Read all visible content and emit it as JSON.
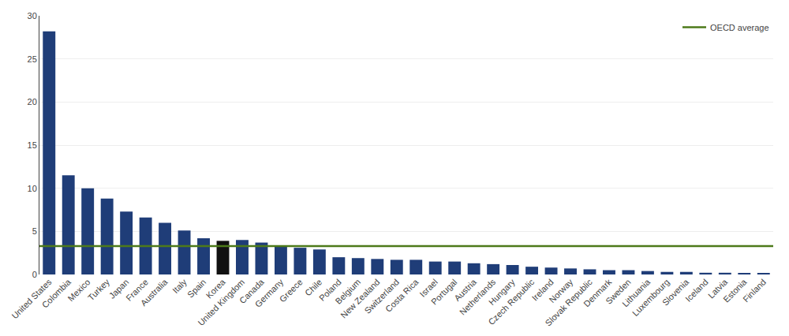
{
  "chart_data": {
    "type": "bar",
    "categories": [
      "United States",
      "Colombia",
      "Mexico",
      "Turkey",
      "Japan",
      "France",
      "Australia",
      "Italy",
      "Spain",
      "Korea",
      "United Kingdom",
      "Canada",
      "Germany",
      "Greece",
      "Chile",
      "Poland",
      "Belgium",
      "New Zealand",
      "Switzerland",
      "Costa Rica",
      "Israel",
      "Portugal",
      "Austria",
      "Netherlands",
      "Hungary",
      "Czech Republic",
      "Ireland",
      "Norway",
      "Slovak Republic",
      "Denmark",
      "Sweden",
      "Lithuania",
      "Luxembourg",
      "Slovenia",
      "Iceland",
      "Latvia",
      "Estonia",
      "Finland"
    ],
    "values": [
      28.2,
      11.5,
      10.0,
      8.8,
      7.3,
      6.6,
      6.0,
      5.1,
      4.2,
      3.9,
      4.0,
      3.7,
      3.3,
      3.1,
      2.9,
      2.0,
      1.9,
      1.8,
      1.7,
      1.7,
      1.5,
      1.5,
      1.3,
      1.2,
      1.1,
      0.9,
      0.8,
      0.7,
      0.6,
      0.5,
      0.5,
      0.4,
      0.3,
      0.3,
      0.2,
      0.2,
      0.15,
      0.1
    ],
    "colors": [
      "#1f3d78",
      "#1f3d78",
      "#1f3d78",
      "#1f3d78",
      "#1f3d78",
      "#1f3d78",
      "#1f3d78",
      "#1f3d78",
      "#1f3d78",
      "#111111",
      "#1f3d78",
      "#1f3d78",
      "#1f3d78",
      "#1f3d78",
      "#1f3d78",
      "#1f3d78",
      "#1f3d78",
      "#1f3d78",
      "#1f3d78",
      "#1f3d78",
      "#1f3d78",
      "#1f3d78",
      "#1f3d78",
      "#1f3d78",
      "#1f3d78",
      "#1f3d78",
      "#1f3d78",
      "#1f3d78",
      "#1f3d78",
      "#1f3d78",
      "#1f3d78",
      "#1f3d78",
      "#1f3d78",
      "#1f3d78",
      "#1f3d78",
      "#1f3d78",
      "#1f3d78",
      "#1f3d78"
    ],
    "reference_line": {
      "name": "OECD average",
      "value": 3.3,
      "color": "#4d7a1a"
    },
    "ylim": [
      0,
      30
    ],
    "yticks": [
      0,
      5,
      10,
      15,
      20,
      25,
      30
    ],
    "grid": true,
    "legend": "upper right"
  }
}
